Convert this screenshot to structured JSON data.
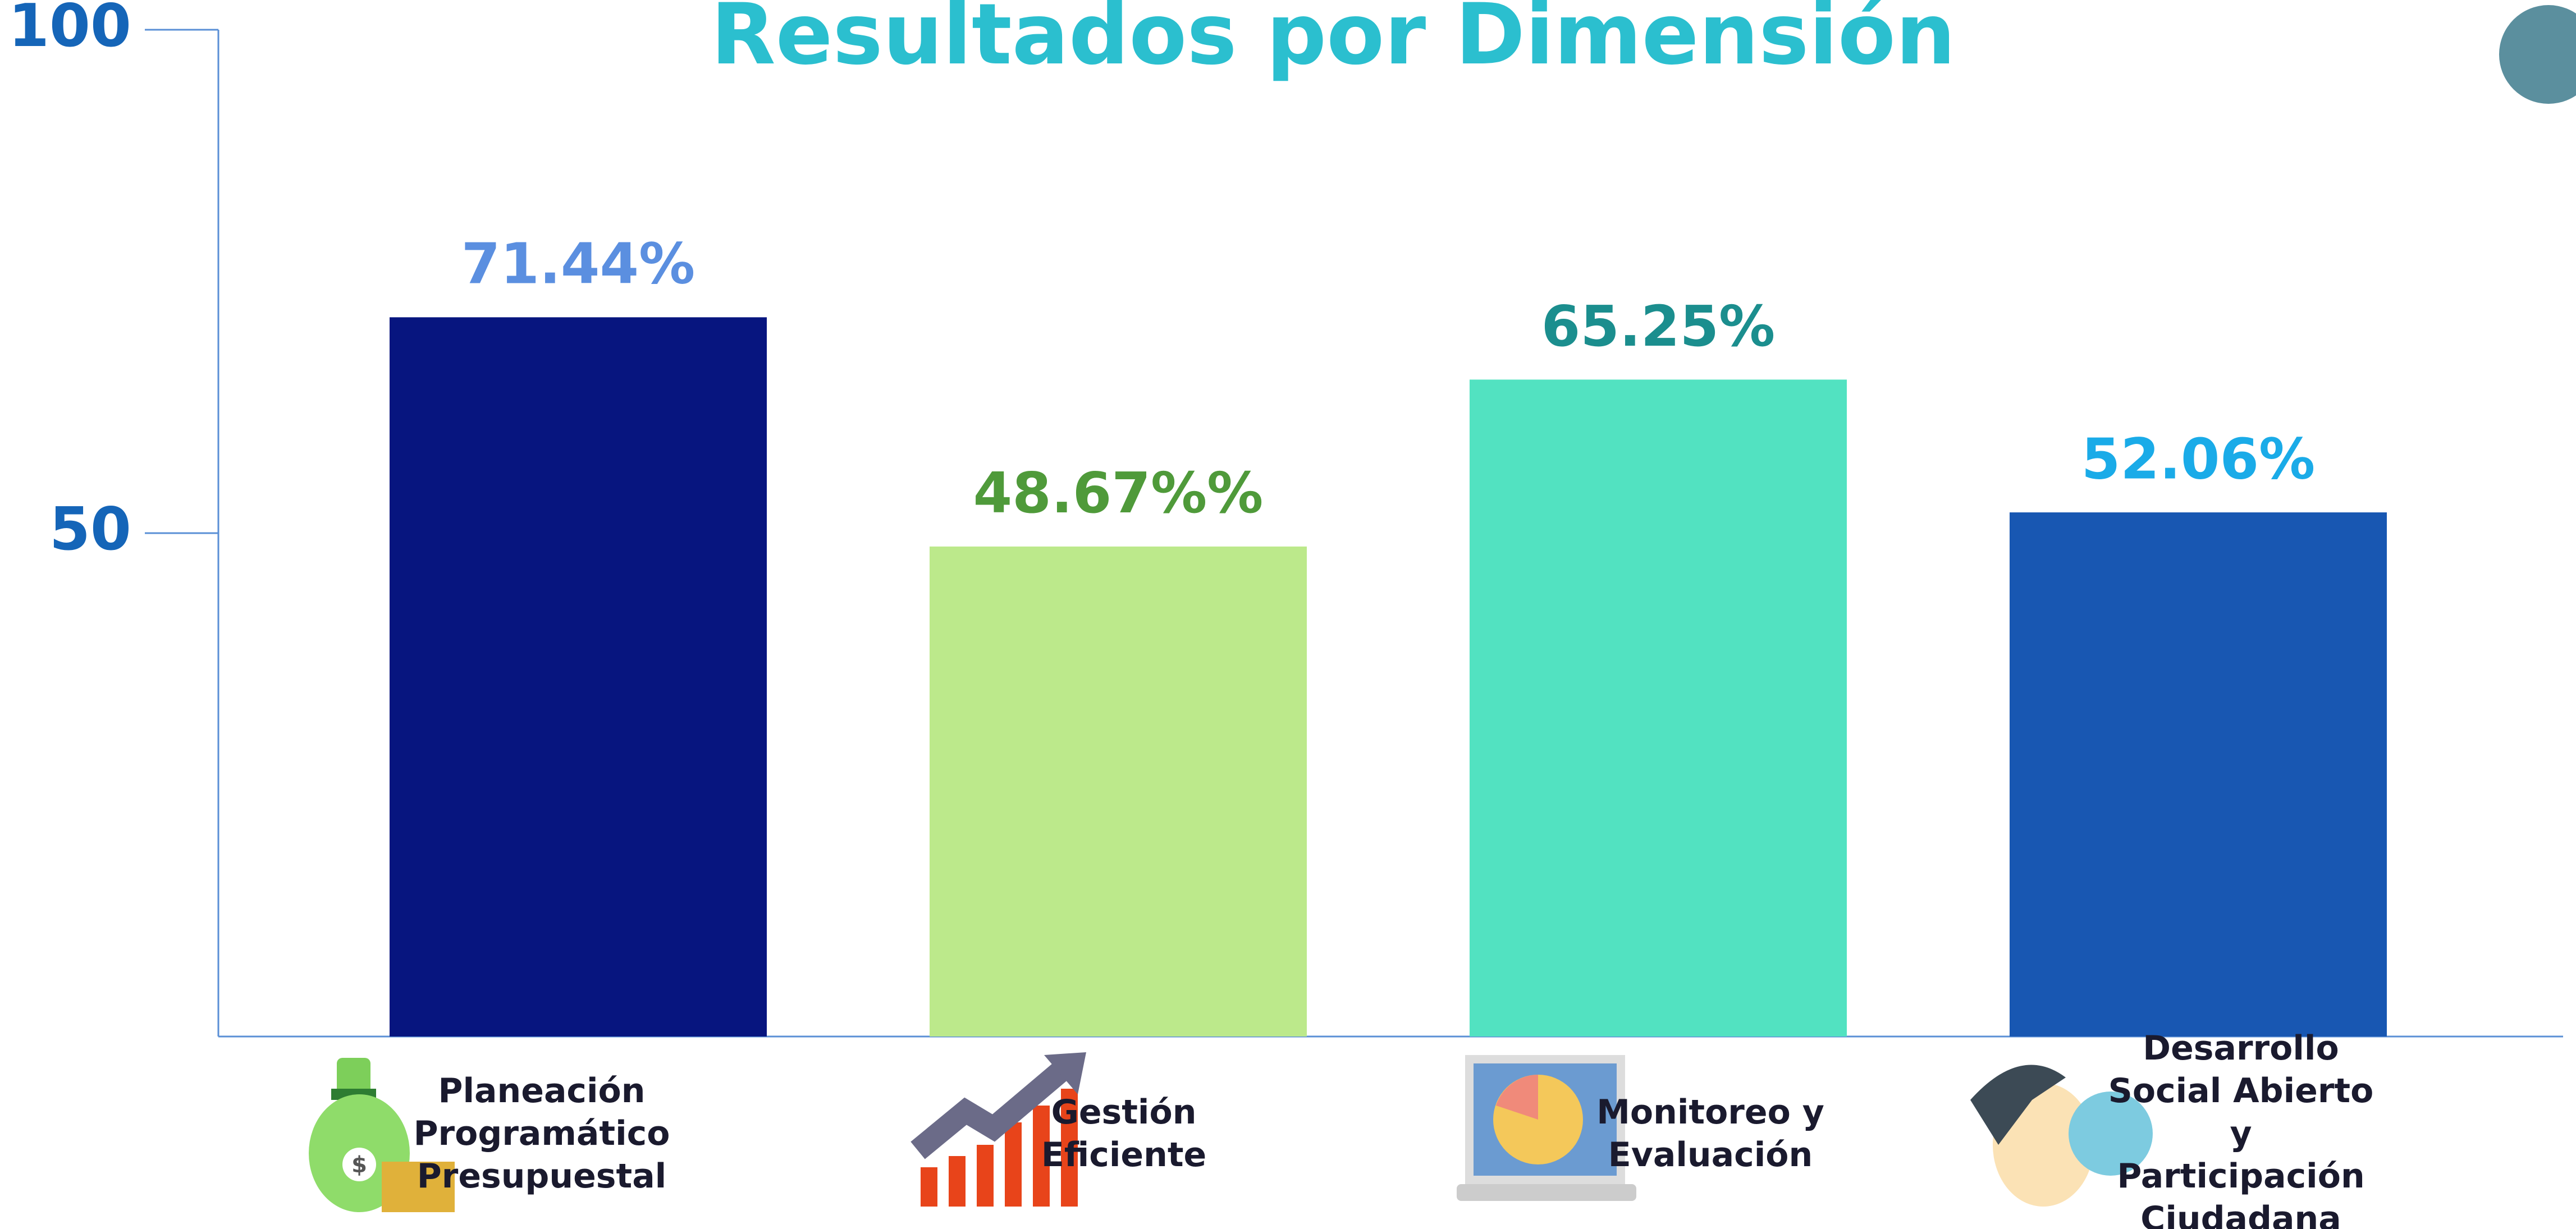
{
  "chart_data": {
    "type": "bar",
    "title": "Resultados por Dimensión",
    "categories": [
      "Planeación Programático Presupuestal",
      "Gestión Eficiente",
      "Monitoreo y Evaluación",
      "Desarrollo Social Abierto y Participación Ciudadana"
    ],
    "values": [
      71.44,
      48.67,
      65.25,
      52.06
    ],
    "value_labels": [
      "71.44%",
      "48.67%%",
      "65.25%",
      "52.06%"
    ],
    "colors": [
      "#07157f",
      "#bce98b",
      "#52e2c1",
      "#1857b2"
    ],
    "label_colors": [
      "#5b8fe0",
      "#4f9a3a",
      "#1b8e8e",
      "#1aabe8"
    ],
    "ylim": [
      0,
      100
    ],
    "yticks": [
      50,
      100
    ],
    "grid": false
  }
}
